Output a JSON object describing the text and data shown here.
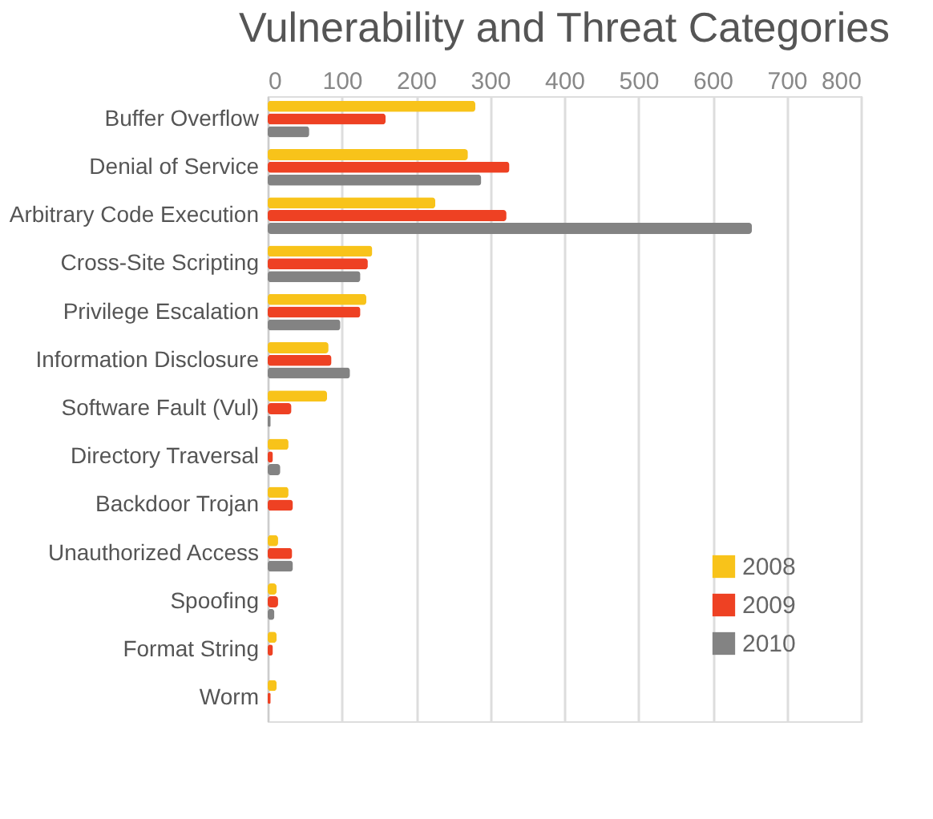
{
  "chart_data": {
    "type": "bar",
    "orientation": "horizontal",
    "title": "Vulnerability and Threat Categories",
    "categories": [
      "Buffer Overflow",
      "Denial of Service",
      "Arbitrary Code Execution",
      "Cross-Site Scripting",
      "Privilege Escalation",
      "Information Disclosure",
      "Software Fault (Vul)",
      "Directory Traversal",
      "Backdoor Trojan",
      "Unauthorized Access",
      "Spoofing",
      "Format String",
      "Worm"
    ],
    "series": [
      {
        "name": "2008",
        "color": "#f8c31a",
        "values": [
          280,
          270,
          226,
          141,
          133,
          82,
          80,
          28,
          28,
          14,
          12,
          12,
          12
        ]
      },
      {
        "name": "2009",
        "color": "#ee4123",
        "values": [
          159,
          326,
          322,
          135,
          125,
          86,
          32,
          7,
          34,
          33,
          14,
          7,
          4
        ]
      },
      {
        "name": "2010",
        "color": "#838383",
        "values": [
          56,
          288,
          653,
          125,
          98,
          111,
          4,
          17,
          null,
          34,
          9,
          null,
          null
        ]
      }
    ],
    "xlim": [
      0,
      800
    ],
    "xticks": [
      0,
      100,
      200,
      300,
      400,
      500,
      600,
      700,
      800
    ],
    "grid": "x",
    "legend": "bottom right"
  }
}
